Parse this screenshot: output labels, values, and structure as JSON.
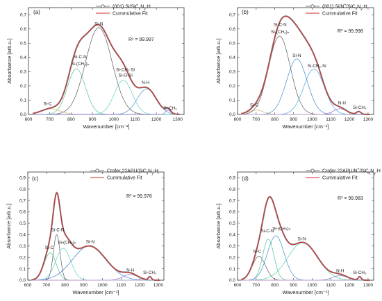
{
  "chart_data": [
    {
      "panel": "(a)",
      "type": "line",
      "legend": [
        "(001) Si/SiC$_x$N$_y$:H",
        "Cummulative Fit"
      ],
      "legend_rich": [
        {
          "t": "(001) Si/SiC"
        },
        {
          "t": "x",
          "s": "sub"
        },
        {
          "t": "N"
        },
        {
          "t": "y",
          "s": "sub"
        },
        {
          "t": ":H"
        }
      ],
      "r2": "R² = 99.997",
      "xlabel": "Wavenumber [cm⁻¹]",
      "ylabel": "Absorbance [arb.u.]",
      "xlim": [
        600,
        1330
      ],
      "ylim": [
        0,
        0.75
      ],
      "xticks": [
        600,
        700,
        800,
        900,
        1000,
        1100,
        1200,
        1300
      ],
      "yticks": [
        0.0,
        0.1,
        0.2,
        0.3,
        0.4,
        0.5,
        0.6,
        0.7
      ],
      "components": [
        {
          "label": "Si-C",
          "center": 705,
          "height": 0.04,
          "width": 45,
          "color": "#d4b46a"
        },
        {
          "label": "Si-C-N / Si-(CH₃)ₙ",
          "center": 825,
          "height": 0.32,
          "width": 42,
          "color": "#4cc48c"
        },
        {
          "label": "Si-N",
          "center": 930,
          "height": 0.61,
          "width": 62,
          "color": "#5a5a5a"
        },
        {
          "label": "Si-CH₂-Si / Si-O-Si",
          "center": 1045,
          "height": 0.24,
          "width": 42,
          "color": "#5bd0c0"
        },
        {
          "label": "N-H",
          "center": 1155,
          "height": 0.18,
          "width": 45,
          "color": "#4a8fd8"
        },
        {
          "label": "Si-CH₃",
          "center": 1255,
          "height": 0.03,
          "width": 12,
          "color": "#8a6ad0"
        }
      ],
      "labels": [
        {
          "text": "Si-N",
          "x": 930,
          "y": 0.625
        },
        {
          "text": "Si-C-N",
          "x": 842,
          "y": 0.395
        },
        {
          "text": "Si-(CH₃)ₙ",
          "x": 842,
          "y": 0.345
        },
        {
          "text": "Si-CH₂-Si",
          "x": 1055,
          "y": 0.305
        },
        {
          "text": "Si-O-Si",
          "x": 1055,
          "y": 0.265
        },
        {
          "text": "N-H",
          "x": 1150,
          "y": 0.215
        },
        {
          "text": "Si-C",
          "x": 690,
          "y": 0.065
        },
        {
          "text": "Si-CH₃",
          "x": 1265,
          "y": 0.035
        }
      ]
    },
    {
      "panel": "(b)",
      "type": "line",
      "legend": [
        "(001) Si/N⁺/SiC$_x$N$_y$:H",
        "Cummulative Fit"
      ],
      "legend_rich": [
        {
          "t": "(001) Si/N"
        },
        {
          "t": "+",
          "s": "sup"
        },
        {
          "t": "/SiC"
        },
        {
          "t": "x",
          "s": "sub"
        },
        {
          "t": "N"
        },
        {
          "t": "y",
          "s": "sub"
        },
        {
          "t": ":H"
        }
      ],
      "r2": "R² = 99.998",
      "xlabel": "Wavenumber [cm⁻¹]",
      "ylabel": "Absorbance [arb.u.]",
      "xlim": [
        600,
        1330
      ],
      "ylim": [
        0,
        0.75
      ],
      "xticks": [
        600,
        700,
        800,
        900,
        1000,
        1100,
        1200,
        1300
      ],
      "yticks": [
        0.0,
        0.1,
        0.2,
        0.3,
        0.4,
        0.5,
        0.6,
        0.7
      ],
      "components": [
        {
          "label": "Si-C",
          "center": 700,
          "height": 0.03,
          "width": 40,
          "color": "#d4b46a"
        },
        {
          "label": "Si-C-N / Si-(CH₃)ₙ",
          "center": 825,
          "height": 0.55,
          "width": 58,
          "color": "#5a5a5a"
        },
        {
          "label": "Si-N",
          "center": 918,
          "height": 0.39,
          "width": 55,
          "color": "#3a8ad0"
        },
        {
          "label": "Si-CH₂-Si",
          "center": 1010,
          "height": 0.32,
          "width": 55,
          "color": "#4aa8d8"
        },
        {
          "label": "N-H",
          "center": 1150,
          "height": 0.04,
          "width": 35,
          "color": "#8a6ad0"
        },
        {
          "label": "Si-CH₃",
          "center": 1250,
          "height": 0.02,
          "width": 12,
          "color": "#c8a0d0"
        }
      ],
      "labels": [
        {
          "text": "Si-C-N",
          "x": 828,
          "y": 0.62
        },
        {
          "text": "Si-(CH₃)ₙ",
          "x": 828,
          "y": 0.57
        },
        {
          "text": "Si-N",
          "x": 918,
          "y": 0.405
        },
        {
          "text": "Si-CH₂-Si",
          "x": 1025,
          "y": 0.33
        },
        {
          "text": "N-H",
          "x": 1160,
          "y": 0.07
        },
        {
          "text": "Si-C",
          "x": 690,
          "y": 0.055
        },
        {
          "text": "Si-CH₃",
          "x": 1255,
          "y": 0.04
        }
      ]
    },
    {
      "panel": "(c)",
      "type": "line",
      "legend": [
        "Crofer 22APU/SiC$_x$N$_y$:H",
        "Cummulative Fit"
      ],
      "legend_rich": [
        {
          "t": "Crofer 22APU/SiC"
        },
        {
          "t": "x",
          "s": "sub"
        },
        {
          "t": "N"
        },
        {
          "t": "y",
          "s": "sub"
        },
        {
          "t": ":H"
        }
      ],
      "r2": "R² = 99.978",
      "xlabel": "Wavenumber [cm⁻¹]",
      "ylabel": "Absorbance [arb.u.]",
      "xlim": [
        600,
        1330
      ],
      "ylim": [
        0,
        0.95
      ],
      "xticks": [
        600,
        700,
        800,
        900,
        1000,
        1100,
        1200,
        1300
      ],
      "yticks": [
        0.0,
        0.1,
        0.2,
        0.3,
        0.4,
        0.5,
        0.6,
        0.7,
        0.8,
        0.9
      ],
      "components": [
        {
          "label": "Si-C",
          "center": 720,
          "height": 0.24,
          "width": 32,
          "color": "#4cc48c"
        },
        {
          "label": "Si-C-N",
          "center": 755,
          "height": 0.4,
          "width": 18,
          "color": "#5a5a5a"
        },
        {
          "label": "Si-(CH₃)ₙ",
          "center": 790,
          "height": 0.28,
          "width": 40,
          "color": "#5bd0c0"
        },
        {
          "label": "Si-N",
          "center": 930,
          "height": 0.3,
          "width": 90,
          "color": "#3a7ad0"
        },
        {
          "label": "N-H",
          "center": 1150,
          "height": 0.05,
          "width": 40,
          "color": "#8a6ad0"
        },
        {
          "label": "Si-CH₃",
          "center": 1255,
          "height": 0.03,
          "width": 8,
          "color": "#c8a0d0"
        }
      ],
      "labels": [
        {
          "text": "Si-C-N",
          "x": 760,
          "y": 0.43
        },
        {
          "text": "Si-(CH₃)ₙ",
          "x": 810,
          "y": 0.32
        },
        {
          "text": "Si-N",
          "x": 935,
          "y": 0.325
        },
        {
          "text": "Si-C",
          "x": 715,
          "y": 0.275
        },
        {
          "text": "N-H",
          "x": 1150,
          "y": 0.075
        },
        {
          "text": "Si-CH₃",
          "x": 1255,
          "y": 0.055
        }
      ]
    },
    {
      "panel": "(d)",
      "type": "line",
      "legend": [
        "Crofer 22APU/N⁺/SiC$_x$N$_y$:H",
        "Cummulative Fit"
      ],
      "legend_rich": [
        {
          "t": "Crofer 22APU/N"
        },
        {
          "t": "+",
          "s": "sup"
        },
        {
          "t": "/SiC"
        },
        {
          "t": "x",
          "s": "sub"
        },
        {
          "t": "N"
        },
        {
          "t": "y",
          "s": "sub"
        },
        {
          "t": ":H"
        }
      ],
      "r2": "R² = 99.983",
      "xlabel": "Wavenumber [cm⁻¹]",
      "ylabel": "Absorbance [arb.u.]",
      "xlim": [
        600,
        1330
      ],
      "ylim": [
        0,
        0.95
      ],
      "xticks": [
        600,
        700,
        800,
        900,
        1000,
        1100,
        1200,
        1300
      ],
      "yticks": [
        0.0,
        0.1,
        0.2,
        0.3,
        0.4,
        0.5,
        0.6,
        0.7,
        0.8,
        0.9
      ],
      "components": [
        {
          "label": "Si-C",
          "center": 715,
          "height": 0.21,
          "width": 35,
          "color": "#5a5a5a"
        },
        {
          "label": "Si-C-N",
          "center": 765,
          "height": 0.36,
          "width": 30,
          "color": "#4cc48c"
        },
        {
          "label": "Si-(CH₃)ₙ",
          "center": 805,
          "height": 0.39,
          "width": 45,
          "color": "#3a8ad0"
        },
        {
          "label": "Si-N",
          "center": 950,
          "height": 0.33,
          "width": 80,
          "color": "#5bd0a0"
        },
        {
          "label": "N-H",
          "center": 1150,
          "height": 0.04,
          "width": 40,
          "color": "#8a6ad0"
        },
        {
          "label": "Si-CH₃",
          "center": 1255,
          "height": 0.03,
          "width": 8,
          "color": "#c8a0d0"
        }
      ],
      "labels": [
        {
          "text": "Si-C-N",
          "x": 760,
          "y": 0.42
        },
        {
          "text": "Si-(CH₃)ₙ",
          "x": 835,
          "y": 0.44
        },
        {
          "text": "Si-N",
          "x": 945,
          "y": 0.35
        },
        {
          "text": "Si-C",
          "x": 705,
          "y": 0.24
        },
        {
          "text": "N-H",
          "x": 1150,
          "y": 0.07
        },
        {
          "text": "Si-CH₃",
          "x": 1255,
          "y": 0.055
        }
      ]
    }
  ]
}
